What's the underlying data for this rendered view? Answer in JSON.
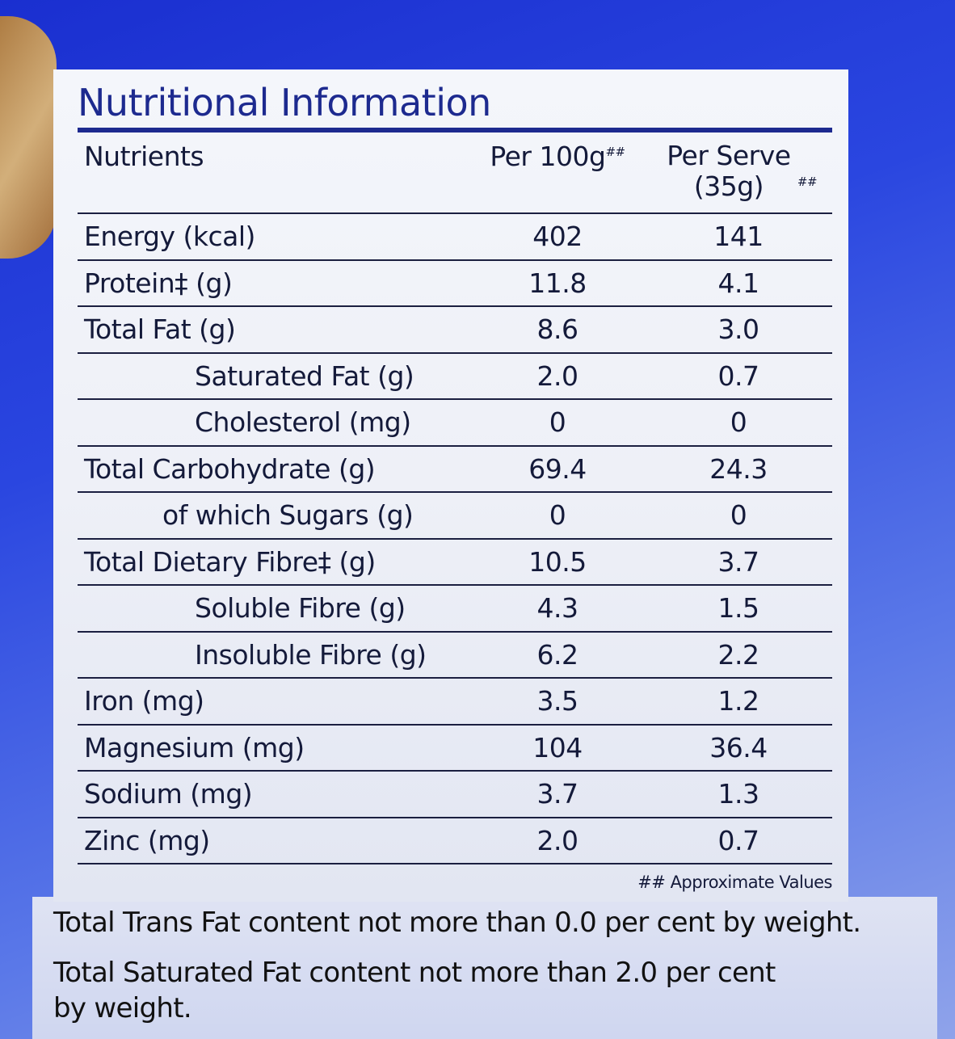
{
  "title": "Nutritional Information",
  "headers": {
    "nutrients": "Nutrients",
    "per100": "Per 100g",
    "per100_mark": "##",
    "perServe": "Per Serve (35g)",
    "perServe_mark": "##"
  },
  "rows": [
    {
      "name": "Energy (kcal)",
      "per100": "402",
      "perServe": "141",
      "level": 0
    },
    {
      "name": "Protein‡ (g)",
      "per100": "11.8",
      "perServe": "4.1",
      "level": 0
    },
    {
      "name": "Total Fat (g)",
      "per100": "8.6",
      "perServe": "3.0",
      "level": 0
    },
    {
      "name": "Saturated Fat (g)",
      "per100": "2.0",
      "perServe": "0.7",
      "level": 2
    },
    {
      "name": "Cholesterol (mg)",
      "per100": "0",
      "perServe": "0",
      "level": 2
    },
    {
      "name": "Total Carbohydrate (g)",
      "per100": "69.4",
      "perServe": "24.3",
      "level": 0
    },
    {
      "name": "of which Sugars (g)",
      "per100": "0",
      "perServe": "0",
      "level": 1
    },
    {
      "name": "Total Dietary Fibre‡ (g)",
      "per100": "10.5",
      "perServe": "3.7",
      "level": 0
    },
    {
      "name": "Soluble Fibre (g)",
      "per100": "4.3",
      "perServe": "1.5",
      "level": 2
    },
    {
      "name": "Insoluble Fibre (g)",
      "per100": "6.2",
      "perServe": "2.2",
      "level": 2
    },
    {
      "name": "Iron (mg)",
      "per100": "3.5",
      "perServe": "1.2",
      "level": 0
    },
    {
      "name": "Magnesium (mg)",
      "per100": "104",
      "perServe": "36.4",
      "level": 0
    },
    {
      "name": "Sodium (mg)",
      "per100": "3.7",
      "perServe": "1.3",
      "level": 0
    },
    {
      "name": "Zinc (mg)",
      "per100": "2.0",
      "perServe": "0.7",
      "level": 0
    }
  ],
  "footnote": "## Approximate Values",
  "statements": [
    "Total Trans Fat content not more than 0.0 per cent by weight.",
    "Total Saturated Fat content not more than 2.0 per cent",
    "by weight."
  ]
}
